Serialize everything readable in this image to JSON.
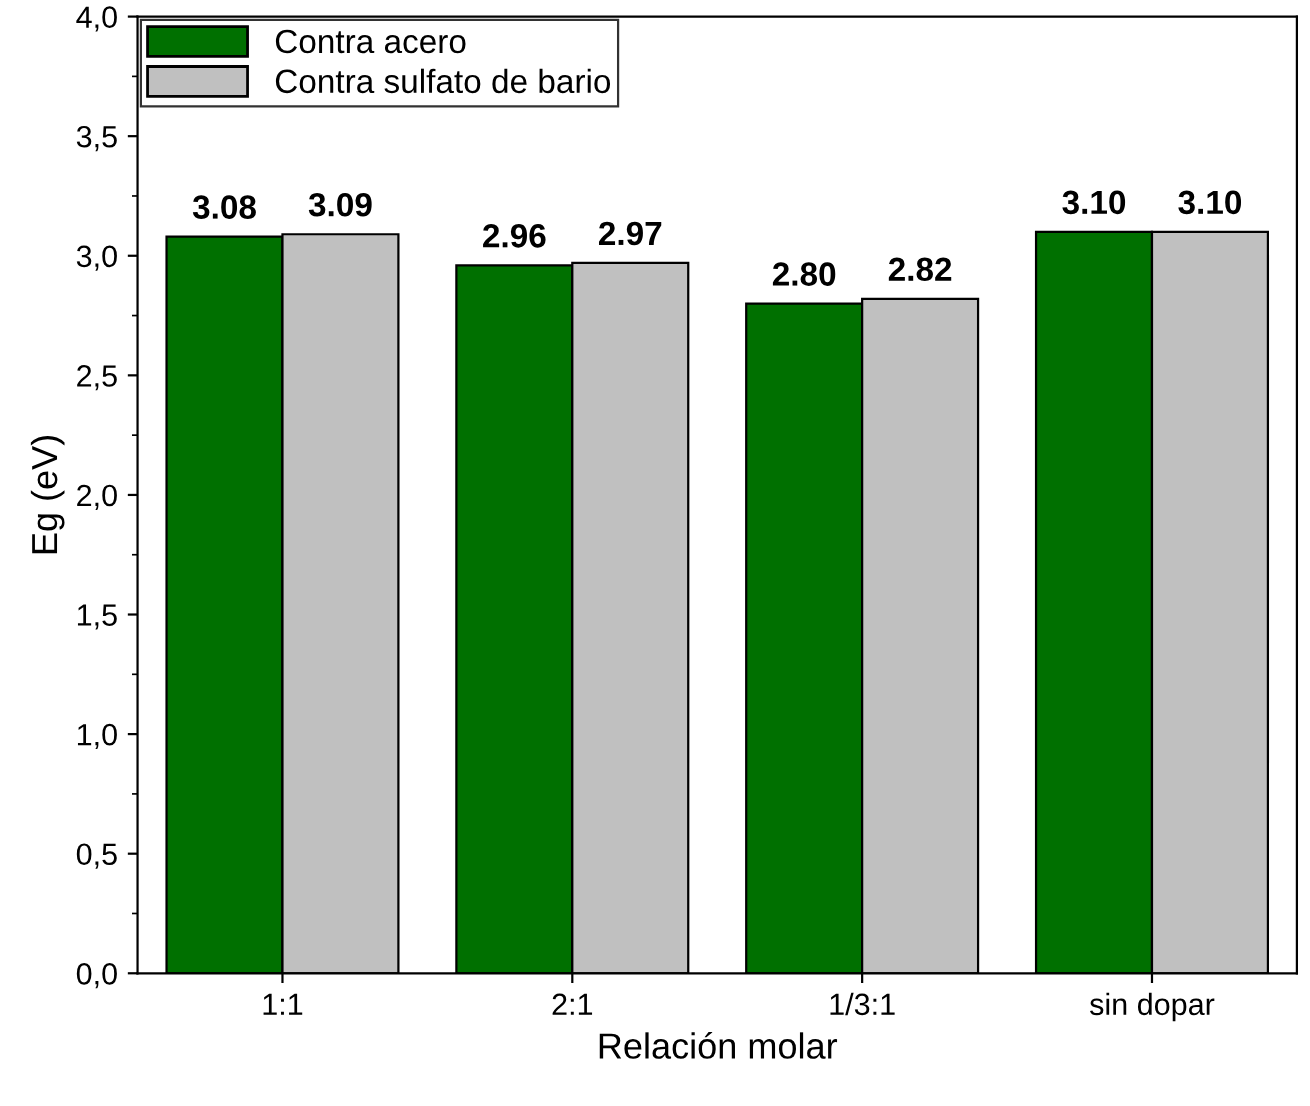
{
  "chart_data": {
    "type": "bar",
    "xlabel": "Relación molar",
    "ylabel": "Eg (eV)",
    "categories": [
      "1:1",
      "2:1",
      "1/3:1",
      "sin dopar"
    ],
    "series": [
      {
        "name": "Contra acero",
        "color": "#007000",
        "values": [
          3.08,
          2.96,
          2.8,
          3.1
        ],
        "value_labels": [
          "3.08",
          "2.96",
          "2.80",
          "3.10"
        ]
      },
      {
        "name": "Contra sulfato de bario",
        "color": "#c0c0c0",
        "values": [
          3.09,
          2.97,
          2.82,
          3.1
        ],
        "value_labels": [
          "3.09",
          "2.97",
          "2.82",
          "3.10"
        ]
      }
    ],
    "ylim": [
      0,
      4
    ],
    "yticks": [
      {
        "value": 0,
        "label": "0,0"
      },
      {
        "value": 0.5,
        "label": "0,5"
      },
      {
        "value": 1,
        "label": "1,0"
      },
      {
        "value": 1.5,
        "label": "1,5"
      },
      {
        "value": 2,
        "label": "2,0"
      },
      {
        "value": 2.5,
        "label": "2,5"
      },
      {
        "value": 3,
        "label": "3,0"
      },
      {
        "value": 3.5,
        "label": "3,5"
      },
      {
        "value": 4,
        "label": "4,0"
      }
    ],
    "legend": "top left",
    "grid": false
  }
}
